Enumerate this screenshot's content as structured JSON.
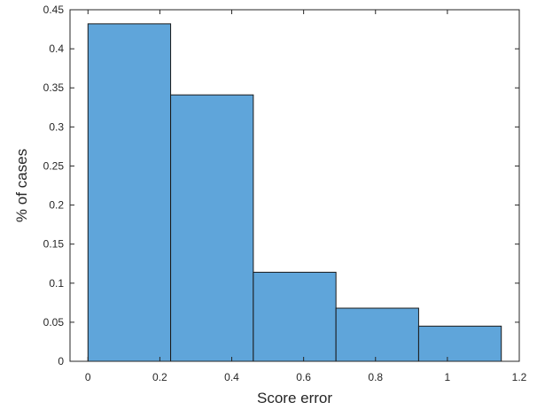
{
  "chart_data": {
    "type": "bar",
    "subtype": "histogram",
    "bins": [
      {
        "start": 0.0,
        "end": 0.23,
        "value": 0.432
      },
      {
        "start": 0.23,
        "end": 0.46,
        "value": 0.341
      },
      {
        "start": 0.46,
        "end": 0.69,
        "value": 0.114
      },
      {
        "start": 0.69,
        "end": 0.92,
        "value": 0.068
      },
      {
        "start": 0.92,
        "end": 1.15,
        "value": 0.045
      }
    ],
    "xlabel": "Score error",
    "ylabel": "% of cases",
    "xlim": [
      -0.05,
      1.2
    ],
    "ylim": [
      0,
      0.45
    ],
    "xticks": [
      "0",
      "0.2",
      "0.4",
      "0.6",
      "0.8",
      "1",
      "1.2"
    ],
    "xtick_values": [
      0,
      0.2,
      0.4,
      0.6,
      0.8,
      1,
      1.2
    ],
    "yticks": [
      "0",
      "0.05",
      "0.1",
      "0.15",
      "0.2",
      "0.25",
      "0.3",
      "0.35",
      "0.4",
      "0.45"
    ],
    "ytick_values": [
      0,
      0.05,
      0.1,
      0.15,
      0.2,
      0.25,
      0.3,
      0.35,
      0.4,
      0.45
    ],
    "grid": false,
    "legend": "none",
    "colors": {
      "bar_fill": "#5fa5da",
      "bar_edge": "#1a1a1a",
      "axis": "#262626",
      "background": "#ffffff"
    }
  }
}
